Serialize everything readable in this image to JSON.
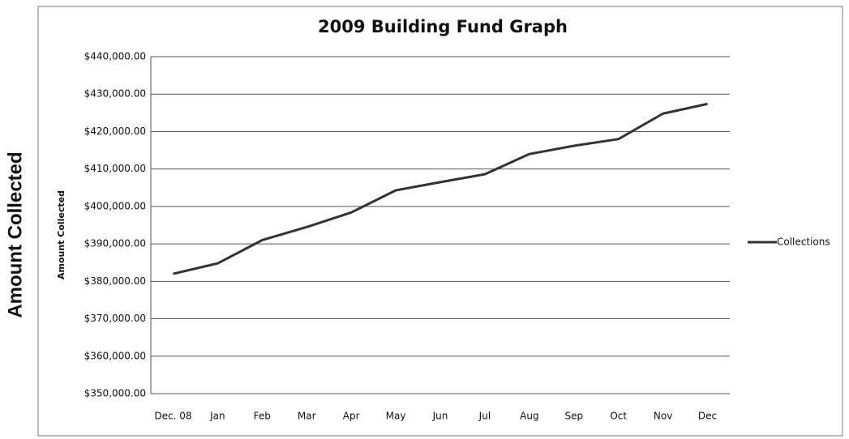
{
  "chart_data": {
    "type": "line",
    "title": "2009 Building Fund Graph",
    "ylabel": "Amount Collected",
    "page_label": "Amount Collected",
    "categories": [
      "Dec. 08",
      "Jan",
      "Feb",
      "Mar",
      "Apr",
      "May",
      "Jun",
      "Jul",
      "Aug",
      "Sep",
      "Oct",
      "Nov",
      "Dec"
    ],
    "series": [
      {
        "name": "Collections",
        "color": "#333333",
        "values": [
          382000,
          384800,
          391000,
          394500,
          398400,
          404300,
          406500,
          408600,
          414000,
          416200,
          418000,
          424800,
          427400
        ]
      }
    ],
    "ylim": [
      350000,
      440000
    ],
    "yticks": [
      {
        "value": 350000,
        "label": "$350,000.00"
      },
      {
        "value": 360000,
        "label": "$360,000.00"
      },
      {
        "value": 370000,
        "label": "$370,000.00"
      },
      {
        "value": 380000,
        "label": "$380,000.00"
      },
      {
        "value": 390000,
        "label": "$390,000.00"
      },
      {
        "value": 400000,
        "label": "$400,000.00"
      },
      {
        "value": 410000,
        "label": "$410,000.00"
      },
      {
        "value": 420000,
        "label": "$420,000.00"
      },
      {
        "value": 430000,
        "label": "$430,000.00"
      },
      {
        "value": 440000,
        "label": "$440,000.00"
      }
    ],
    "grid": true,
    "legend": "right"
  }
}
